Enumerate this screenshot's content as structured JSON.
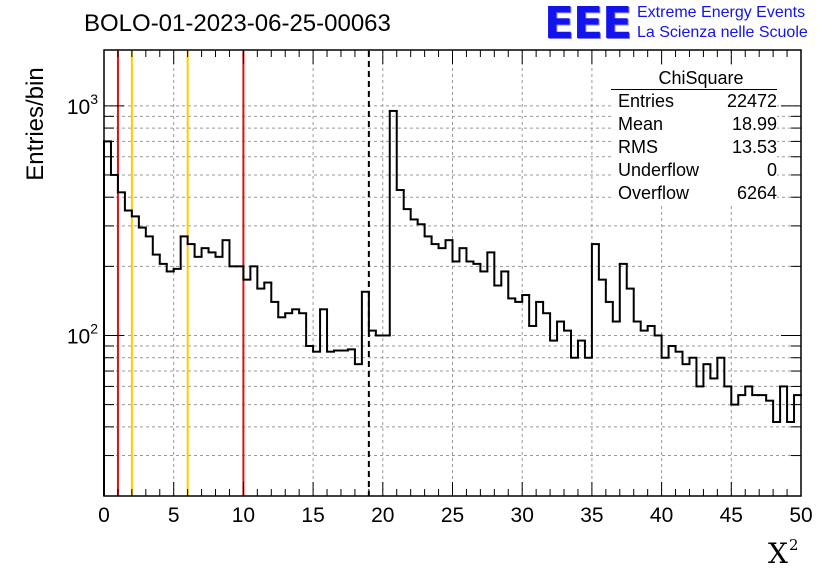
{
  "header": {
    "title": "BOLO-01-2023-06-25-00063",
    "logo_text": "EEE",
    "tagline_1": "Extreme Energy Events",
    "tagline_2": "La Scienza nelle Scuole"
  },
  "stats_box": {
    "title": "ChiSquare",
    "rows": [
      {
        "label": "Entries",
        "value": "22472"
      },
      {
        "label": "Mean",
        "value": "18.99"
      },
      {
        "label": "RMS",
        "value": "13.53"
      },
      {
        "label": "Underflow",
        "value": "0"
      },
      {
        "label": "Overflow",
        "value": "6264"
      }
    ]
  },
  "colors": {
    "red_line": "#dd1111",
    "yellow_line": "#ffcc00",
    "logo_blue": "#1313ee",
    "grid": "#999999"
  },
  "chart_data": {
    "type": "histogram",
    "xlabel": "X",
    "xlabel_superscript": "2",
    "ylabel": "Entries/bin",
    "xlim": [
      0,
      50
    ],
    "ylim": [
      20,
      1750
    ],
    "y_scale": "log",
    "grid": true,
    "bin_width": 0.5,
    "x_ticks": [
      "0",
      "5",
      "10",
      "15",
      "20",
      "25",
      "30",
      "35",
      "40",
      "45",
      "50"
    ],
    "y_ticks": [
      {
        "value": 100,
        "base": "10",
        "exp": "2"
      },
      {
        "value": 1000,
        "base": "10",
        "exp": "3"
      }
    ],
    "vertical_lines": [
      {
        "x": 1,
        "color": "red",
        "style": "solid"
      },
      {
        "x": 2,
        "color": "yellow",
        "style": "solid"
      },
      {
        "x": 6,
        "color": "yellow",
        "style": "solid"
      },
      {
        "x": 10,
        "color": "red",
        "style": "solid"
      },
      {
        "x": 19,
        "color": "black",
        "style": "dashed"
      }
    ],
    "values": [
      700,
      500,
      420,
      350,
      330,
      295,
      270,
      225,
      205,
      190,
      195,
      270,
      250,
      220,
      240,
      230,
      220,
      260,
      200,
      200,
      175,
      200,
      160,
      170,
      140,
      120,
      125,
      130,
      125,
      90,
      85,
      130,
      85,
      86,
      86,
      87,
      75,
      155,
      105,
      100,
      100,
      950,
      430,
      355,
      320,
      305,
      270,
      250,
      240,
      260,
      210,
      240,
      210,
      205,
      190,
      230,
      165,
      190,
      145,
      140,
      150,
      110,
      140,
      125,
      95,
      115,
      105,
      80,
      95,
      80,
      250,
      175,
      140,
      115,
      205,
      160,
      115,
      105,
      110,
      100,
      80,
      90,
      85,
      75,
      80,
      60,
      75,
      65,
      80,
      60,
      50,
      55,
      60,
      55,
      55,
      52,
      42,
      60,
      42,
      55
    ]
  }
}
